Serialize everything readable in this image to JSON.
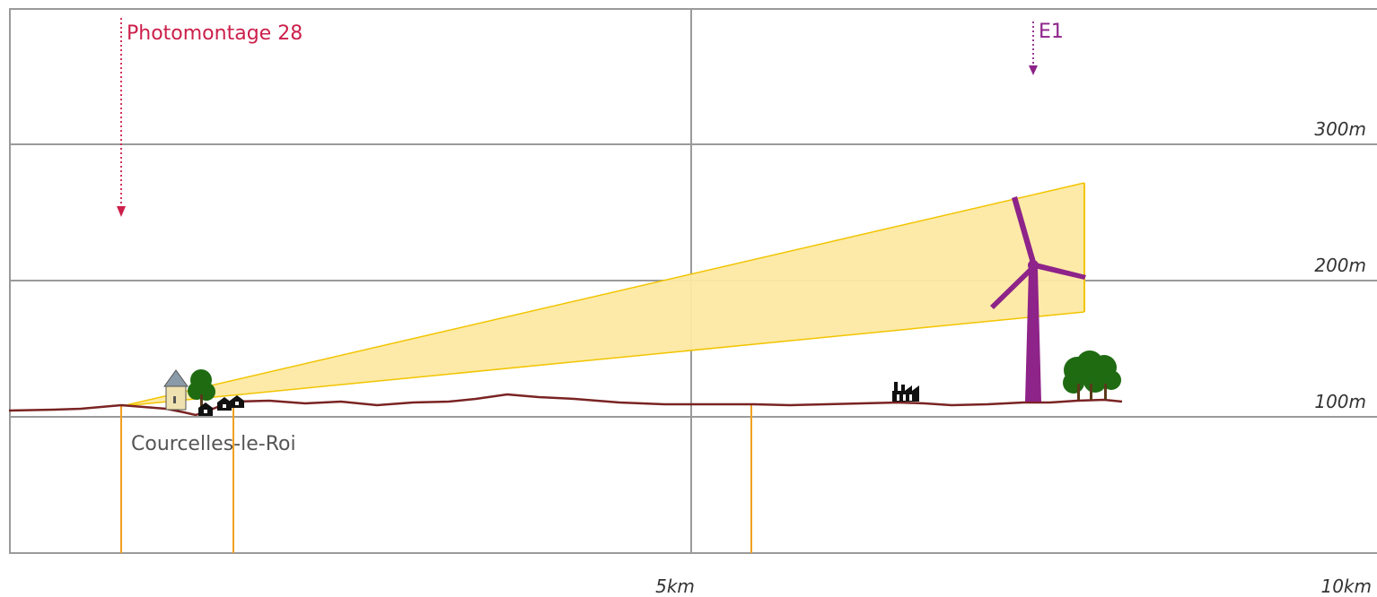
{
  "colors": {
    "grid": "#9a9a9a",
    "terrain": "#7a2323",
    "view_cone_fill": "#fde9a3",
    "view_cone_edge": "#f2c400",
    "marker_line": "#f0a020",
    "photomontage": "#cc1f4a",
    "turbine": "#8e2389",
    "tree": "#1f6b12",
    "building": "#111111"
  },
  "photomontage": {
    "label": "Photomontage 28",
    "icon": "arrow-down-icon"
  },
  "turbine": {
    "label": "E1",
    "icon": "wind-turbine-icon"
  },
  "place": {
    "label": "Courcelles-le-Roi"
  },
  "axis": {
    "y_ticks": [
      {
        "label": "100m",
        "value": 100
      },
      {
        "label": "200m",
        "value": 200
      },
      {
        "label": "300m",
        "value": 300
      }
    ],
    "x_ticks": [
      {
        "label": "5km",
        "value": 5
      },
      {
        "label": "10km",
        "value": 10
      }
    ]
  }
}
